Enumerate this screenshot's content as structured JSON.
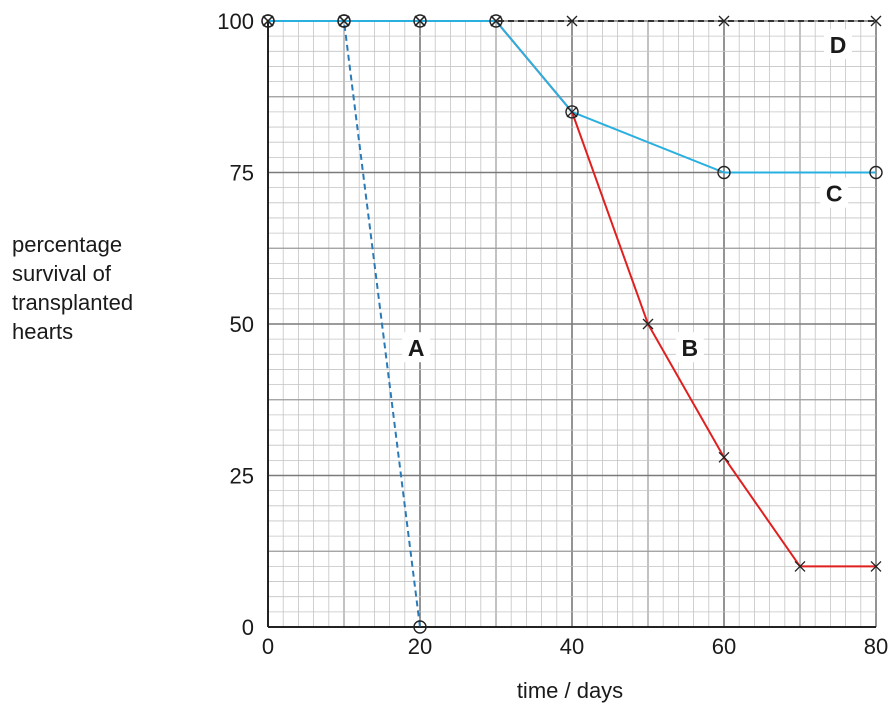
{
  "chart_data": {
    "type": "line",
    "title": "",
    "xlabel": "time / days",
    "ylabel": "percentage\nsurvival of\ntransplanted\nhearts",
    "xlim": [
      0,
      80
    ],
    "ylim": [
      0,
      100
    ],
    "x_ticks": [
      0,
      20,
      40,
      60,
      80
    ],
    "y_ticks": [
      0,
      25,
      50,
      75,
      100
    ],
    "grid": true,
    "series": [
      {
        "name": "A",
        "color": "#2a7ab8",
        "style": "dashed",
        "marker": "circle",
        "points": [
          [
            0,
            100
          ],
          [
            10,
            100
          ],
          [
            20,
            0
          ]
        ]
      },
      {
        "name": "B",
        "color": "#e0201f",
        "style": "solid",
        "marker": "cross",
        "points": [
          [
            0,
            100
          ],
          [
            10,
            100
          ],
          [
            20,
            100
          ],
          [
            30,
            100
          ],
          [
            40,
            85
          ],
          [
            50,
            50
          ],
          [
            60,
            28
          ],
          [
            70,
            10
          ],
          [
            80,
            10
          ]
        ]
      },
      {
        "name": "C",
        "color": "#2ab0e0",
        "style": "solid",
        "marker": "circle",
        "points": [
          [
            0,
            100
          ],
          [
            10,
            100
          ],
          [
            20,
            100
          ],
          [
            30,
            100
          ],
          [
            40,
            85
          ],
          [
            60,
            75
          ],
          [
            80,
            75
          ]
        ]
      },
      {
        "name": "D",
        "color": "#333333",
        "style": "dashed",
        "marker": "cross",
        "points": [
          [
            0,
            100
          ],
          [
            10,
            100
          ],
          [
            20,
            100
          ],
          [
            30,
            100
          ],
          [
            40,
            100
          ],
          [
            60,
            100
          ],
          [
            80,
            100
          ]
        ]
      }
    ]
  }
}
